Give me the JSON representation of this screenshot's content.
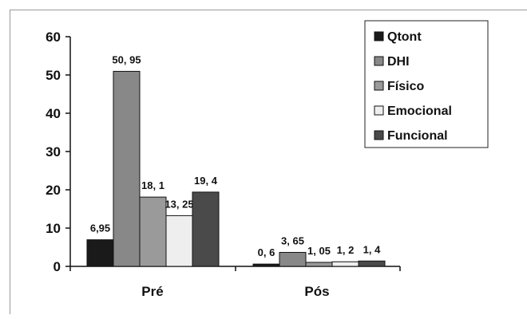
{
  "chart_data": {
    "type": "bar",
    "categories": [
      "Pré",
      "Pós"
    ],
    "series": [
      {
        "name": "Qtont",
        "values": [
          6.95,
          0.6
        ],
        "labels": [
          "6,95",
          "0, 6"
        ],
        "color": "#1a1a1a"
      },
      {
        "name": "DHI",
        "values": [
          50.95,
          3.65
        ],
        "labels": [
          "50, 95",
          "3, 65"
        ],
        "color": "#888888"
      },
      {
        "name": "Físico",
        "values": [
          18.1,
          1.05
        ],
        "labels": [
          "18, 1",
          "1, 05"
        ],
        "color": "#9a9a9a"
      },
      {
        "name": "Emocional",
        "values": [
          13.25,
          1.2
        ],
        "labels": [
          "13, 25",
          "1, 2"
        ],
        "color": "#eeeeee"
      },
      {
        "name": "Funcional",
        "values": [
          19.4,
          1.4
        ],
        "labels": [
          "19, 4",
          "1, 4"
        ],
        "color": "#4a4a4a"
      }
    ],
    "yticks": [
      "0",
      "10",
      "20",
      "30",
      "40",
      "50",
      "60"
    ],
    "ylim": [
      0,
      60
    ],
    "legend_position": "top-right",
    "grid": false
  }
}
